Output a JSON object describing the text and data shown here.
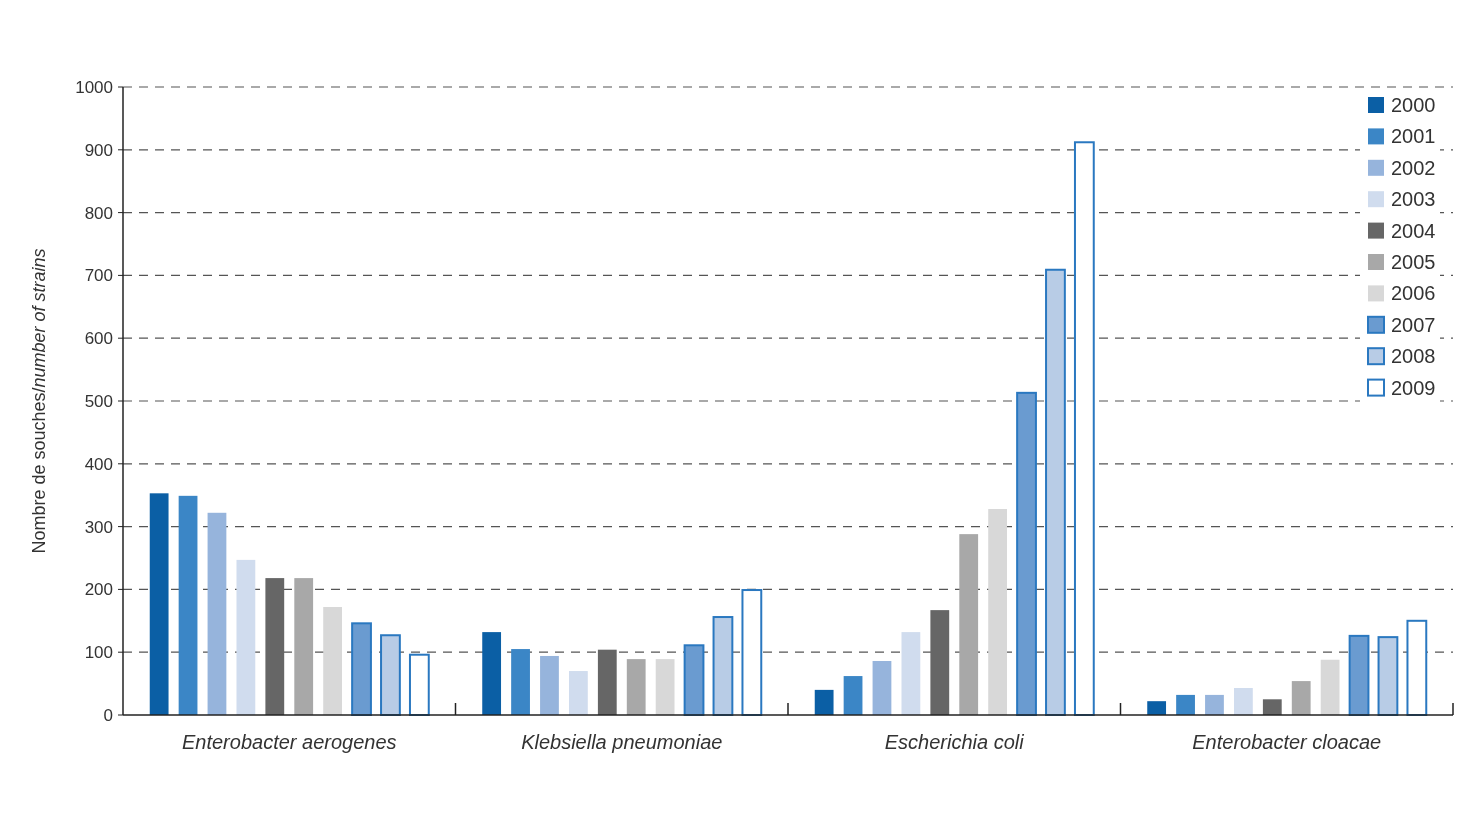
{
  "chart_data": {
    "type": "bar",
    "ylabel": "Nombre de souches/number of strains",
    "categories": [
      "Enterobacter aerogenes",
      "Klebsiella pneumoniae",
      "Escherichia coli",
      "Enterobacter cloacae"
    ],
    "ylim": [
      0,
      1000
    ],
    "yticks": [
      0,
      100,
      200,
      300,
      400,
      500,
      600,
      700,
      800,
      900,
      1000
    ],
    "grid": "y",
    "legend": "top right",
    "series": [
      {
        "name": "2000",
        "color": "#0b5fa5",
        "values": [
          353,
          132,
          40,
          22
        ]
      },
      {
        "name": "2001",
        "color": "#3b86c6",
        "values": [
          349,
          105,
          62,
          32
        ]
      },
      {
        "name": "2002",
        "color": "#96b4dc",
        "values": [
          322,
          94,
          86,
          32
        ]
      },
      {
        "name": "2003",
        "color": "#d0dcee",
        "values": [
          247,
          70,
          132,
          43
        ]
      },
      {
        "name": "2004",
        "color": "#666666",
        "values": [
          218,
          104,
          167,
          25
        ]
      },
      {
        "name": "2005",
        "color": "#a8a8a8",
        "values": [
          218,
          89,
          288,
          54
        ]
      },
      {
        "name": "2006",
        "color": "#d8d8d8",
        "values": [
          172,
          89,
          328,
          88
        ]
      },
      {
        "name": "2007",
        "color": "#6a9bd0",
        "values": [
          146,
          111,
          513,
          126
        ]
      },
      {
        "name": "2008",
        "color": "#b8cce6",
        "values": [
          127,
          156,
          709,
          124
        ]
      },
      {
        "name": "2009",
        "color": "#ffffff",
        "values": [
          96,
          199,
          912,
          150
        ]
      }
    ]
  }
}
